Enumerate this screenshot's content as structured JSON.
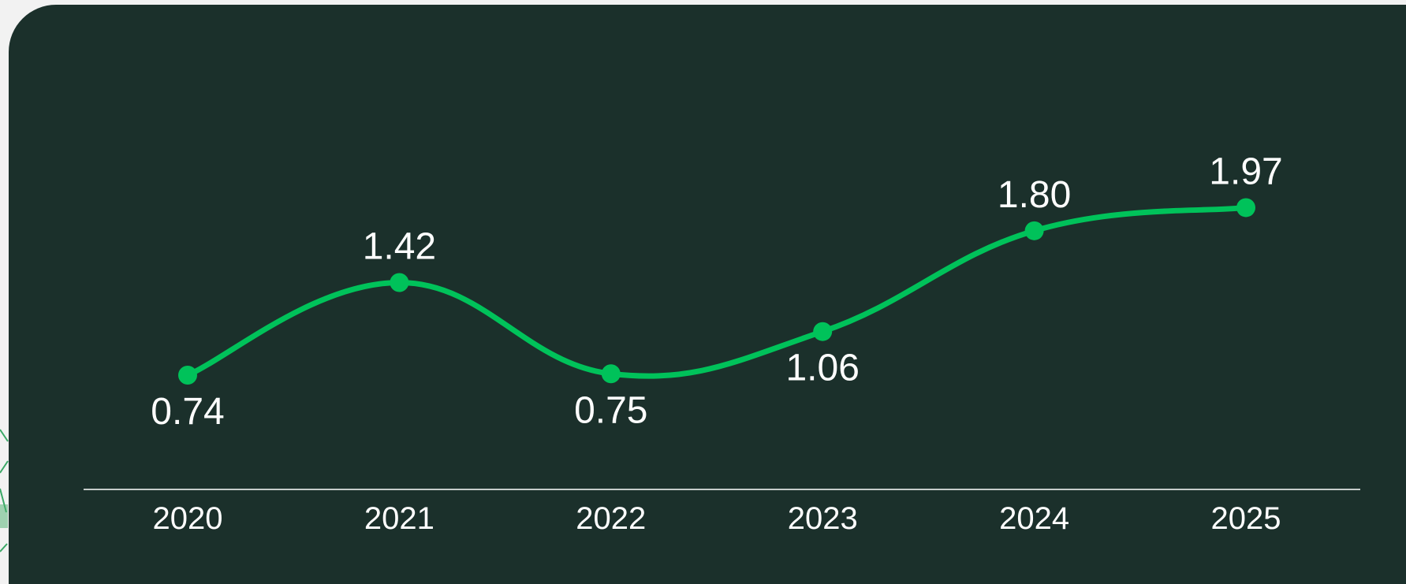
{
  "chart_data": {
    "type": "line",
    "title": "",
    "xlabel": "",
    "ylabel": "",
    "categories": [
      "2020",
      "2021",
      "2022",
      "2023",
      "2024",
      "2025"
    ],
    "series": [
      {
        "values": [
          0.74,
          1.42,
          0.75,
          1.06,
          1.8,
          1.97
        ],
        "labels": [
          "0.74",
          "1.42",
          "0.75",
          "1.06",
          "1.80",
          "1.97"
        ]
      }
    ],
    "smooth": true,
    "grid": false,
    "color": "#00c25a",
    "background": "#1b302b"
  }
}
